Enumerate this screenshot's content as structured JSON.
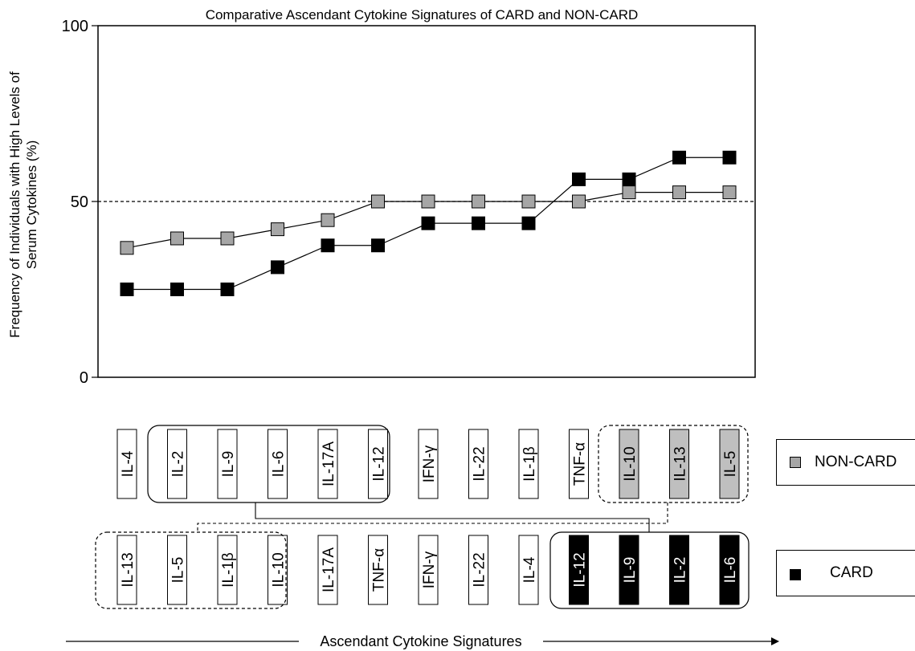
{
  "chart_data": {
    "type": "line",
    "title": "Comparative Ascendant Cytokine Signatures of  CARD and NON-CARD",
    "ylabel_line1": "Frequency of Individuals with High Levels of",
    "ylabel_line2": "Serum Cytokines (%)",
    "xlabel": "Ascendant Cytokine Signatures",
    "ylim": [
      0,
      100
    ],
    "yticks": [
      "0",
      "50",
      "100"
    ],
    "reference_line": 50,
    "grid": false,
    "legend_placement": "right",
    "series": [
      {
        "name": "NON-CARD",
        "color": "#a6a6a6",
        "values": [
          36.8,
          39.5,
          39.5,
          42.1,
          44.7,
          50,
          50,
          50,
          50,
          50,
          52.6,
          52.6,
          52.6
        ],
        "categories": [
          "IL-4",
          "IL-2",
          "IL-9",
          "IL-6",
          "IL-17A",
          "IL-12",
          "IFN-γ",
          "IL-22",
          "IL-1β",
          "TNF-α",
          "IL-10",
          "IL-13",
          "IL-5"
        ],
        "highlighted": [
          "IL-10",
          "IL-13",
          "IL-5"
        ]
      },
      {
        "name": "CARD",
        "color": "#000000",
        "values": [
          25,
          25,
          25,
          31.3,
          37.5,
          37.5,
          43.8,
          43.8,
          43.8,
          56.3,
          56.3,
          62.5,
          62.5
        ],
        "categories": [
          "IL-13",
          "IL-5",
          "IL-1β",
          "IL-10",
          "IL-17A",
          "TNF-α",
          "IFN-γ",
          "IL-22",
          "IL-4",
          "IL-12",
          "IL-9",
          "IL-2",
          "IL-6"
        ],
        "highlighted": [
          "IL-12",
          "IL-9",
          "IL-2",
          "IL-6"
        ]
      }
    ]
  },
  "legend": {
    "noncard_label": "NON-CARD",
    "card_label": "CARD"
  }
}
